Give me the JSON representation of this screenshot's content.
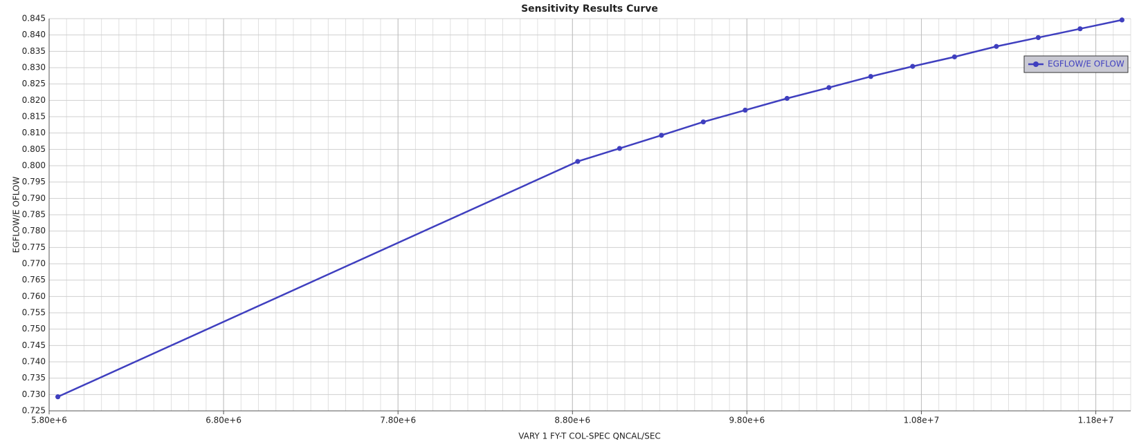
{
  "chart_data": {
    "type": "line",
    "title": "Sensitivity Results Curve",
    "x_label": "VARY   1 FY-T COL-SPEC QNCAL/SEC",
    "y_label": "EGFLOW/E OFLOW",
    "xlim": [
      5800000,
      12000000
    ],
    "xticks": [
      {
        "value": 5800000,
        "label": "5.80e+6"
      },
      {
        "value": 6800000,
        "label": "6.80e+6"
      },
      {
        "value": 7800000,
        "label": "7.80e+6"
      },
      {
        "value": 8800000,
        "label": "8.80e+6"
      },
      {
        "value": 9800000,
        "label": "9.80e+6"
      },
      {
        "value": 10800000,
        "label": "1.08e+7"
      },
      {
        "value": 11800000,
        "label": "1.18e+7"
      }
    ],
    "ylim": [
      0.725,
      0.845
    ],
    "yticks": [
      0.725,
      {
        "value": 0.73,
        "label": "0.730"
      },
      0.735,
      {
        "value": 0.74,
        "label": "0.740"
      },
      0.745,
      {
        "value": 0.75,
        "label": "0.750"
      },
      0.755,
      {
        "value": 0.76,
        "label": "0.760"
      },
      0.765,
      {
        "value": 0.77,
        "label": "0.770"
      },
      0.775,
      {
        "value": 0.78,
        "label": "0.780"
      },
      0.785,
      {
        "value": 0.79,
        "label": "0.790"
      },
      0.795,
      {
        "value": 0.8,
        "label": "0.800"
      },
      0.805,
      {
        "value": 0.81,
        "label": "0.810"
      },
      0.815,
      {
        "value": 0.82,
        "label": "0.820"
      },
      0.825,
      {
        "value": 0.83,
        "label": "0.830"
      },
      0.835,
      {
        "value": 0.84,
        "label": "0.840"
      },
      0.845
    ],
    "grid": true,
    "legend": "upper right",
    "x": [
      5850000,
      8830000,
      9070000,
      9310000,
      9550000,
      9790000,
      10030000,
      10270000,
      10510000,
      10750000,
      10990000,
      11230000,
      11470000,
      11710000,
      11950000
    ],
    "series": [
      {
        "name": "EGFLOW/E OFLOW",
        "color": "#3f3fbf",
        "values": [
          0.7293,
          0.8013,
          0.8053,
          0.8093,
          0.8134,
          0.817,
          0.8206,
          0.8239,
          0.8273,
          0.8304,
          0.8333,
          0.8365,
          0.8392,
          0.8419,
          0.8446
        ]
      }
    ]
  }
}
